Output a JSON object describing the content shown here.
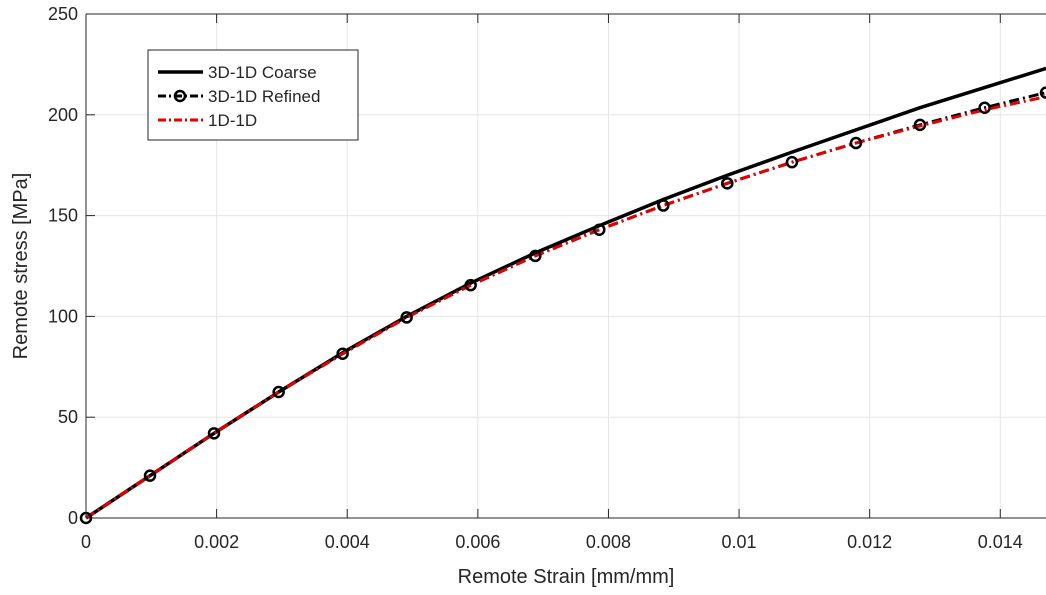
{
  "chart_data": {
    "type": "line",
    "title": "",
    "xlabel": "Remote Strain [mm/mm]",
    "ylabel": "Remote stress [MPa]",
    "xlim": [
      0,
      0.0147
    ],
    "ylim": [
      0,
      250
    ],
    "xticks": [
      0,
      0.002,
      0.004,
      0.006,
      0.008,
      0.01,
      0.012,
      0.014
    ],
    "xtick_labels": [
      "0",
      "0.002",
      "0.004",
      "0.006",
      "0.008",
      "0.01",
      "0.012",
      "0.014"
    ],
    "yticks": [
      0,
      50,
      100,
      150,
      200,
      250
    ],
    "ytick_labels": [
      "0",
      "50",
      "100",
      "150",
      "200",
      "250"
    ],
    "grid": true,
    "legend_position": "top-left",
    "series": [
      {
        "name": "3D-1D Coarse",
        "color": "#000000",
        "style": "solid",
        "marker": "none",
        "x": [
          0,
          0.00098,
          0.00196,
          0.00295,
          0.00393,
          0.00491,
          0.00589,
          0.00688,
          0.00786,
          0.00884,
          0.00982,
          0.01081,
          0.01179,
          0.01277,
          0.01376,
          0.0147
        ],
        "y": [
          0,
          21,
          42,
          62.5,
          82,
          100,
          116.5,
          131.5,
          145,
          158,
          170,
          181.5,
          192.5,
          203.5,
          213.5,
          223
        ]
      },
      {
        "name": "3D-1D Refined",
        "color": "#000000",
        "style": "dash-dot",
        "marker": "circle",
        "x": [
          0,
          0.00098,
          0.00196,
          0.00295,
          0.00393,
          0.00491,
          0.00589,
          0.00688,
          0.00786,
          0.00884,
          0.00982,
          0.01081,
          0.01179,
          0.01277,
          0.01376,
          0.0147
        ],
        "y": [
          0,
          21,
          42,
          62.5,
          81.5,
          99.5,
          115.5,
          130,
          143,
          155,
          166,
          176.5,
          186,
          195,
          203.5,
          211
        ]
      },
      {
        "name": "1D-1D",
        "color": "#e00000",
        "style": "dash-dot",
        "marker": "none",
        "x": [
          0,
          0.00098,
          0.00196,
          0.00295,
          0.00393,
          0.00491,
          0.00589,
          0.00688,
          0.00786,
          0.00884,
          0.00982,
          0.01081,
          0.01179,
          0.01277,
          0.01376,
          0.0147
        ],
        "y": [
          0,
          21,
          42,
          62.5,
          81.5,
          99.5,
          115.5,
          130,
          143,
          155,
          166,
          176.5,
          186,
          194.5,
          202.5,
          209
        ]
      }
    ]
  }
}
